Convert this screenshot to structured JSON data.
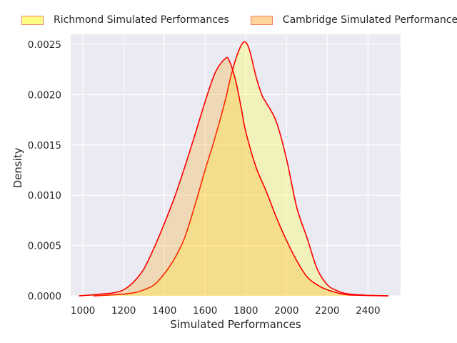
{
  "chart_data": {
    "type": "area",
    "xlabel": "Simulated Performances",
    "ylabel": "Density",
    "xlim": [
      940,
      2560
    ],
    "ylim": [
      0,
      0.0026
    ],
    "xticks": [
      1000,
      1200,
      1400,
      1600,
      1800,
      2000,
      2200,
      2400
    ],
    "yticks": [
      0.0,
      0.0005,
      0.001,
      0.0015,
      0.002,
      0.0025
    ],
    "ytick_labels": [
      "0.0000",
      "0.0005",
      "0.0010",
      "0.0015",
      "0.0020",
      "0.0025"
    ],
    "grid": true,
    "legend_placement": "top",
    "series": [
      {
        "name": "Richmond Simulated Performances",
        "fill_color": "#ffff55",
        "fill_opacity": 0.35,
        "line_color": "#ff0000",
        "x": [
          1050,
          1150,
          1250,
          1300,
          1350,
          1400,
          1450,
          1500,
          1550,
          1600,
          1650,
          1700,
          1720,
          1750,
          1780,
          1800,
          1820,
          1850,
          1880,
          1900,
          1950,
          2000,
          2050,
          2100,
          2150,
          2200,
          2250,
          2300,
          2400,
          2500
        ],
        "y": [
          0,
          1e-05,
          3e-05,
          6e-05,
          0.00011,
          0.00022,
          0.00037,
          0.00058,
          0.0009,
          0.00125,
          0.00158,
          0.00195,
          0.00213,
          0.00235,
          0.0025,
          0.00252,
          0.00243,
          0.00218,
          0.00199,
          0.00192,
          0.00173,
          0.00136,
          0.00088,
          0.00058,
          0.00027,
          0.00011,
          5e-05,
          2e-05,
          5e-06,
          0
        ]
      },
      {
        "name": "Cambridge Simulated Performances",
        "fill_color": "#ffa500",
        "fill_opacity": 0.25,
        "line_color": "#ff0000",
        "x": [
          980,
          1050,
          1100,
          1150,
          1200,
          1250,
          1300,
          1350,
          1400,
          1450,
          1500,
          1550,
          1600,
          1650,
          1700,
          1720,
          1750,
          1780,
          1800,
          1850,
          1900,
          1950,
          2000,
          2050,
          2100,
          2150,
          2200,
          2250,
          2300,
          2400,
          2500
        ],
        "y": [
          0,
          1e-05,
          2e-05,
          3e-05,
          6e-05,
          0.00014,
          0.00027,
          0.00048,
          0.00072,
          0.00098,
          0.00128,
          0.0016,
          0.00193,
          0.00222,
          0.00236,
          0.00233,
          0.00214,
          0.00184,
          0.00163,
          0.00128,
          0.00104,
          0.00078,
          0.00055,
          0.00035,
          0.00019,
          0.00011,
          6e-05,
          3e-05,
          1e-05,
          4e-06,
          0
        ]
      }
    ]
  }
}
